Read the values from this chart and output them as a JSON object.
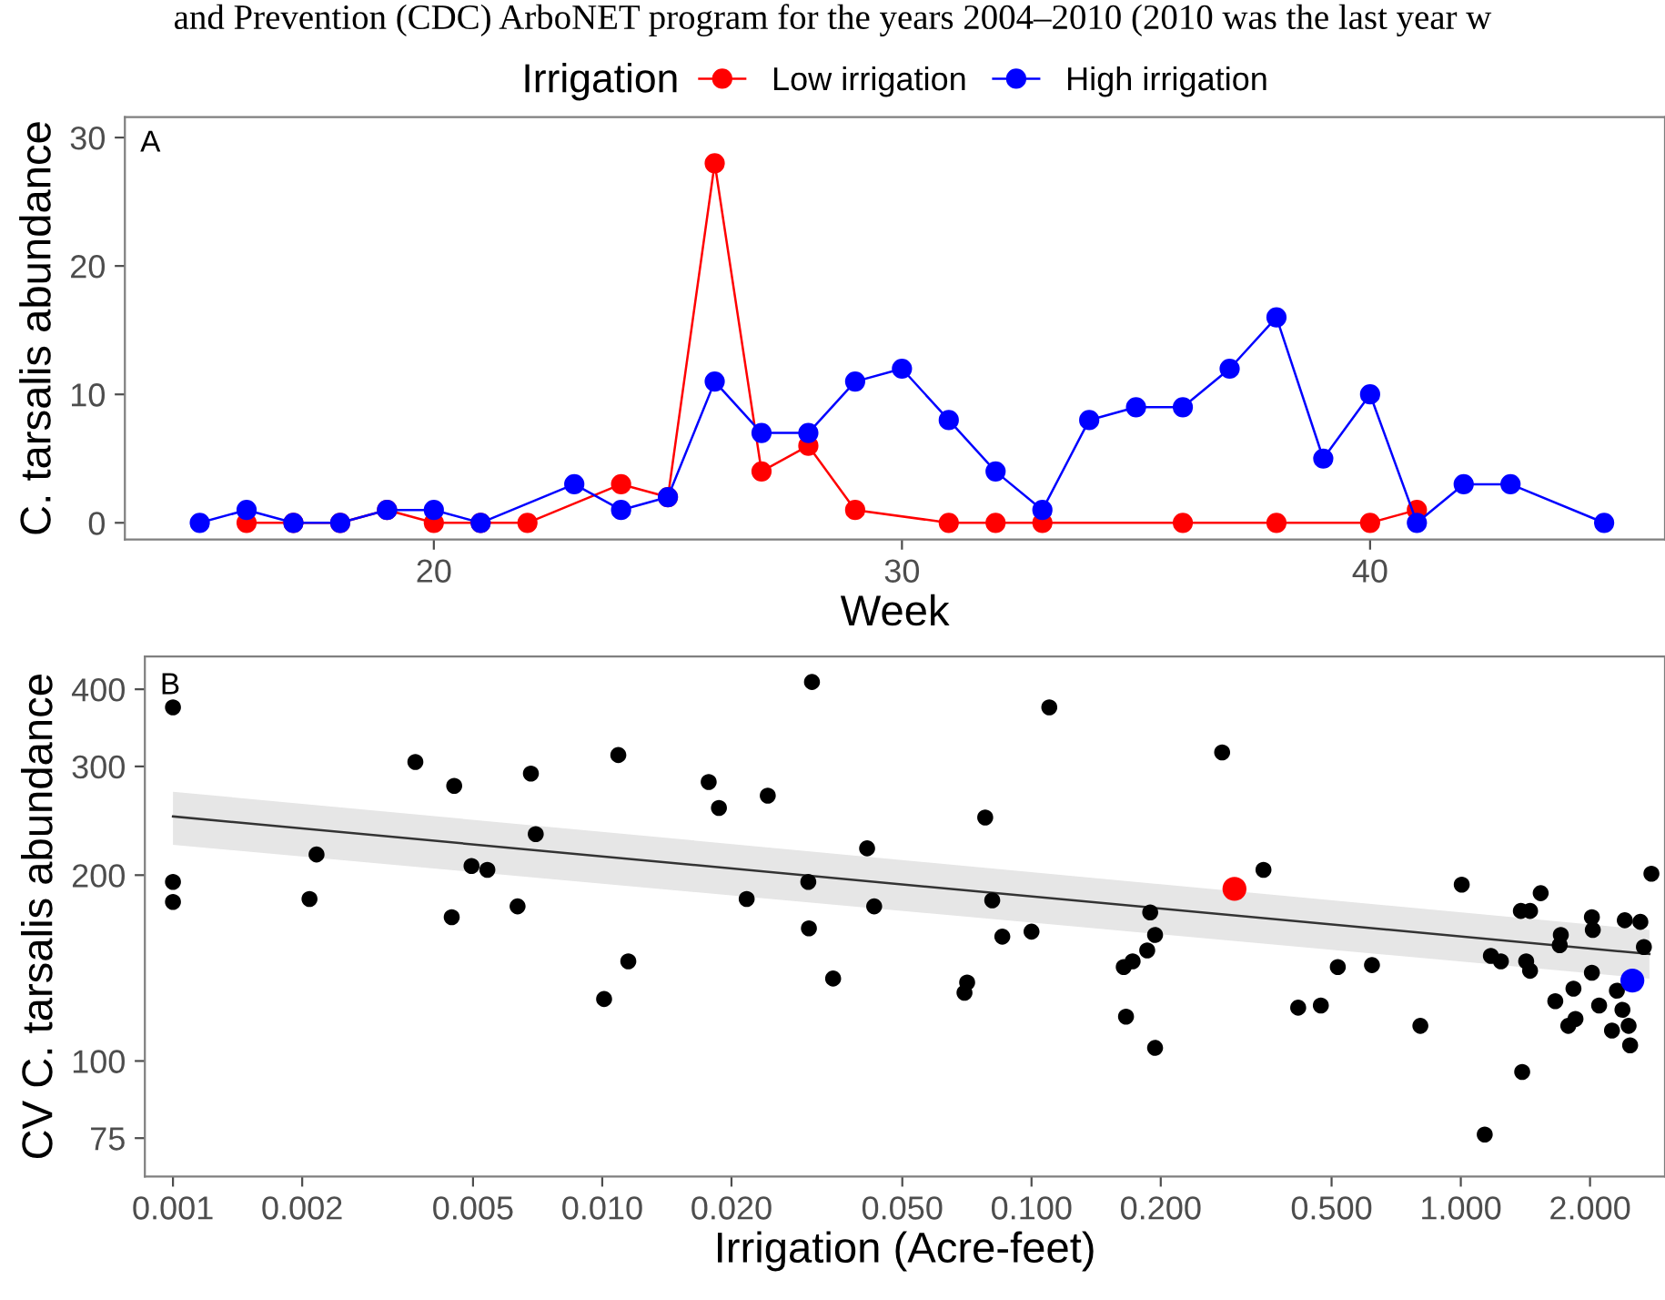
{
  "chart_data": [
    {
      "type": "line",
      "xlabel": "Week",
      "ylabel": "C. tarsalis abundance",
      "legend_title": "Irrigation",
      "legend": "top",
      "marker": "circle",
      "line_style": "solid",
      "annotations": [
        "and Prevention (CDC) ArboNET program for the years 2004–2010 (2010 was the last year w",
        "A"
      ],
      "xlim": [
        13.4,
        46.3
      ],
      "xticks": [
        20,
        30,
        40
      ],
      "ylim": [
        -1.3,
        31.6
      ],
      "yticks": [
        0,
        10,
        20,
        30
      ],
      "series": [
        {
          "name": "Low irrigation",
          "color": "#ff0000",
          "x": [
            16,
            17,
            18,
            19,
            20,
            21,
            22,
            24,
            25,
            26,
            27,
            28,
            29,
            31,
            32,
            33,
            36,
            38,
            40,
            41
          ],
          "values": [
            0,
            0,
            0,
            1,
            0,
            0,
            0,
            3,
            2,
            28,
            4,
            6,
            1,
            0,
            0,
            0,
            0,
            0,
            0,
            1
          ]
        },
        {
          "name": "High irrigation",
          "color": "#0000ff",
          "x": [
            15,
            16,
            17,
            18,
            19,
            20,
            21,
            23,
            24,
            25,
            26,
            27,
            28,
            29,
            30,
            31,
            32,
            33,
            34,
            35,
            36,
            37,
            38,
            39,
            40,
            41,
            42,
            43,
            45
          ],
          "values": [
            0,
            1,
            0,
            0,
            1,
            1,
            0,
            3,
            1,
            2,
            11,
            7,
            7,
            11,
            12,
            8,
            4,
            1,
            8,
            9,
            9,
            12,
            16,
            5,
            10,
            0,
            3,
            3,
            0
          ]
        }
      ]
    },
    {
      "type": "scatter",
      "xlabel": "Irrigation (Acre-feet)",
      "ylabel": "CV C. tarsalis abundance",
      "log": "xy",
      "marker": "circle",
      "annotations": [
        "B"
      ],
      "xlim": [
        0.00086,
        2.99
      ],
      "xticks": [
        0.001,
        0.002,
        0.005,
        {
          "value": 0.01,
          "label": "0.010"
        },
        {
          "value": 0.02,
          "label": "0.020"
        },
        {
          "value": 0.05,
          "label": "0.050"
        },
        {
          "value": 0.1,
          "label": "0.100"
        },
        {
          "value": 0.2,
          "label": "0.200"
        },
        {
          "value": 0.5,
          "label": "0.500"
        },
        {
          "value": 1,
          "label": "1.000"
        },
        {
          "value": 2,
          "label": "2.000"
        }
      ],
      "ylim": [
        65,
        452
      ],
      "yticks": [
        75,
        100,
        200,
        300,
        400
      ],
      "series": [
        {
          "type": "line",
          "marker": "none",
          "color": "#333333",
          "x": [
            0.001,
            2.75
          ],
          "values": [
            249,
            149
          ],
          "lower": [
            224,
            136
          ],
          "upper": [
            273,
            163
          ]
        },
        {
          "color": "#000000",
          "x": [
            0.001,
            0.001,
            0.001,
            0.00208,
            0.00216,
            0.00367,
            0.00452,
            0.00446,
            0.00496,
            0.0054,
            0.00635,
            0.00682,
            0.007,
            0.0101,
            0.0109,
            0.0115,
            0.0177,
            0.0187,
            0.0217,
            0.0243,
            0.0308,
            0.0302,
            0.0303,
            0.0345,
            0.0414,
            0.043,
            0.11,
            0.278,
            0.078,
            0.347,
            0.081,
            0.0855,
            0.1,
            0.0708,
            0.0698,
            0.189,
            0.194,
            0.186,
            0.172,
            0.164,
            0.166,
            0.194,
            0.418,
            0.472,
            0.517,
            0.621,
            0.805,
            1.005,
            1.137,
            1.175,
            1.24,
            1.39,
            1.38,
            1.45,
            1.535,
            1.42,
            1.45,
            1.66,
            1.71,
            1.7,
            1.83,
            1.85,
            1.78,
            2.02,
            2.03,
            2.02,
            2.1,
            2.25,
            2.31,
            2.38,
            2.41,
            2.46,
            2.48,
            2.62,
            2.67,
            2.78
          ],
          "values": [
            374,
            195,
            181,
            183,
            216,
            305,
            279,
            171,
            207,
            204,
            178,
            292,
            233,
            126,
            313,
            145,
            283,
            257,
            183,
            269,
            411,
            195,
            164,
            136,
            221,
            178,
            374,
            316,
            248,
            204,
            182,
            159,
            162,
            134,
            129,
            174,
            160,
            151,
            145,
            142,
            118,
            105,
            122,
            123,
            142,
            143,
            114,
            193,
            76,
            148,
            145,
            96,
            175,
            175,
            187,
            145,
            140,
            125,
            160,
            154,
            131,
            117,
            114,
            171,
            163,
            139,
            123,
            112,
            130,
            121,
            169,
            114,
            106,
            168,
            153,
            201
          ]
        },
        {
          "color": "#ff0000",
          "x": [
            0.297
          ],
          "values": [
            190
          ]
        },
        {
          "color": "#0000ff",
          "x": [
            2.51
          ],
          "values": [
            135
          ]
        }
      ]
    }
  ]
}
